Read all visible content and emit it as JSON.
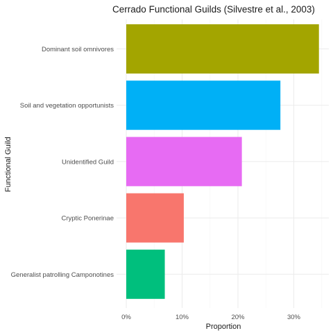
{
  "chart_data": {
    "type": "bar",
    "orientation": "horizontal",
    "title": "Cerrado Functional Guilds (Silvestre et al., 2003)",
    "xlabel": "Proportion",
    "ylabel": "Functional Guild",
    "categories": [
      "Dominant soil omnivores",
      "Soil and vegetation opportunists",
      "Unidentified Guild",
      "Cryptic Ponerinae",
      "Generalist patrolling Camponotines"
    ],
    "values": [
      0.345,
      0.276,
      0.207,
      0.103,
      0.069
    ],
    "colors": [
      "#A3A500",
      "#00B0F6",
      "#E76BF3",
      "#F8766D",
      "#00BF7D"
    ],
    "xlim": [
      0,
      0.36
    ],
    "xticks": [
      0,
      0.1,
      0.2,
      0.3
    ],
    "xtick_labels": [
      "0%",
      "10%",
      "20%",
      "30%"
    ],
    "grid": true,
    "legend": "none"
  }
}
